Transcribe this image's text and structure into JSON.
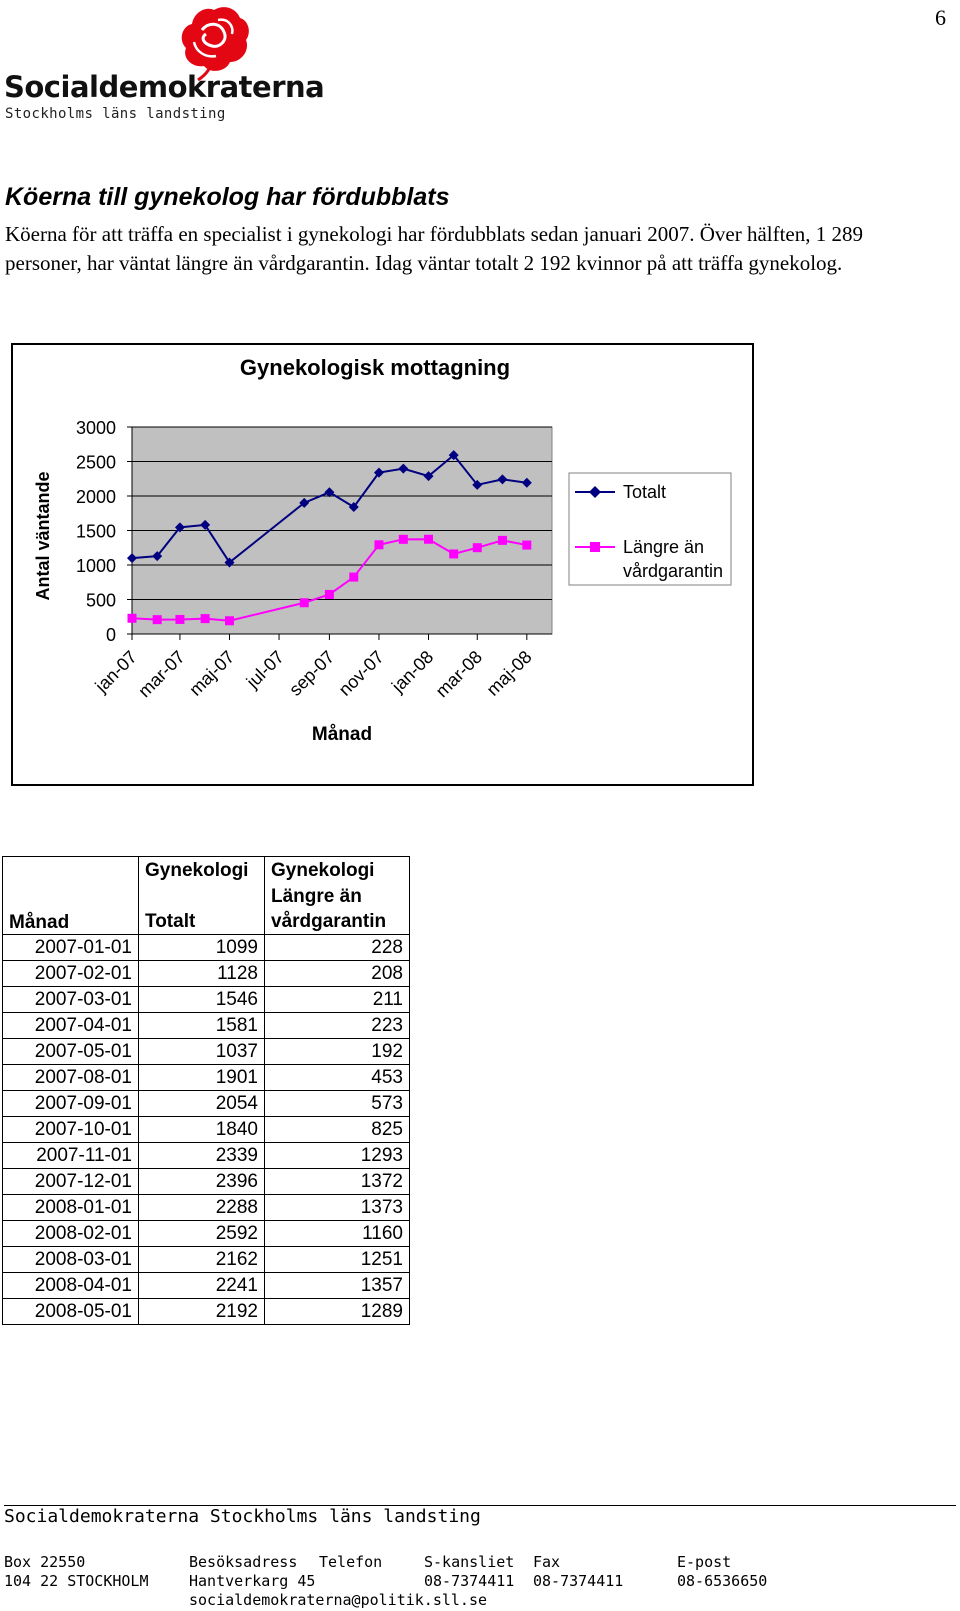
{
  "page_number": "6",
  "logo": {
    "wordmark": "Socialdemokraterna",
    "subtitle": "Stockholms läns landsting",
    "colors": {
      "rose": "#e30613"
    }
  },
  "article": {
    "headline": "Köerna till gynekolog har fördubblats",
    "intro": "Köerna för att träffa en specialist i gynekologi har fördubblats sedan januari 2007. Över hälften, 1 289 personer, har väntat längre än vårdgarantin. Idag väntar totalt 2 192 kvinnor på att träffa gynekolog."
  },
  "chart_data": {
    "type": "line",
    "title": "Gynekologisk mottagning",
    "xlabel": "Månad",
    "ylabel": "Antal väntande",
    "ylim": [
      0,
      3000
    ],
    "yticks": [
      "0",
      "500",
      "1000",
      "1500",
      "2000",
      "2500",
      "3000"
    ],
    "x": [
      "2007-01-01",
      "2007-02-01",
      "2007-03-01",
      "2007-04-01",
      "2007-05-01",
      "2007-08-01",
      "2007-09-01",
      "2007-10-01",
      "2007-11-01",
      "2007-12-01",
      "2008-01-01",
      "2008-02-01",
      "2008-03-01",
      "2008-04-01",
      "2008-05-01"
    ],
    "xlim": [
      "2007-01-01",
      "2008-06-01"
    ],
    "xticks": [
      {
        "date": "2007-01-01",
        "label": "jan-07"
      },
      {
        "date": "2007-03-01",
        "label": "mar-07"
      },
      {
        "date": "2007-05-01",
        "label": "maj-07"
      },
      {
        "date": "2007-07-01",
        "label": "jul-07"
      },
      {
        "date": "2007-09-01",
        "label": "sep-07"
      },
      {
        "date": "2007-11-01",
        "label": "nov-07"
      },
      {
        "date": "2008-01-01",
        "label": "jan-08"
      },
      {
        "date": "2008-03-01",
        "label": "mar-08"
      },
      {
        "date": "2008-05-01",
        "label": "maj-08"
      }
    ],
    "series": [
      {
        "name": "Totalt",
        "color": "#000080",
        "marker": "diamond",
        "values": [
          1099,
          1128,
          1546,
          1581,
          1037,
          1901,
          2054,
          1840,
          2339,
          2396,
          2288,
          2592,
          2162,
          2241,
          2192
        ]
      },
      {
        "name": "Längre än vårdgarantin",
        "color": "#ff00ff",
        "marker": "square",
        "values": [
          228,
          208,
          211,
          223,
          192,
          453,
          573,
          825,
          1293,
          1372,
          1373,
          1160,
          1251,
          1357,
          1289
        ]
      }
    ],
    "plot_background": "#c0c0c0",
    "grid": true,
    "legend_position": "right"
  },
  "table": {
    "headers": {
      "month": "Månad",
      "total_top": "Gynekologi",
      "total_bottom": "Totalt",
      "vg_top": "Gynekologi",
      "vg_mid": "Längre än",
      "vg_bottom": "vårdgarantin"
    },
    "rows": [
      {
        "month": "2007-01-01",
        "total": "1099",
        "vg": "228"
      },
      {
        "month": "2007-02-01",
        "total": "1128",
        "vg": "208"
      },
      {
        "month": "2007-03-01",
        "total": "1546",
        "vg": "211"
      },
      {
        "month": "2007-04-01",
        "total": "1581",
        "vg": "223"
      },
      {
        "month": "2007-05-01",
        "total": "1037",
        "vg": "192"
      },
      {
        "month": "2007-08-01",
        "total": "1901",
        "vg": "453"
      },
      {
        "month": "2007-09-01",
        "total": "2054",
        "vg": "573"
      },
      {
        "month": "2007-10-01",
        "total": "1840",
        "vg": "825"
      },
      {
        "month": "2007-11-01",
        "total": "2339",
        "vg": "1293"
      },
      {
        "month": "2007-12-01",
        "total": "2396",
        "vg": "1372"
      },
      {
        "month": "2008-01-01",
        "total": "2288",
        "vg": "1373"
      },
      {
        "month": "2008-02-01",
        "total": "2592",
        "vg": "1160"
      },
      {
        "month": "2008-03-01",
        "total": "2162",
        "vg": "1251"
      },
      {
        "month": "2008-04-01",
        "total": "2241",
        "vg": "1357"
      },
      {
        "month": "2008-05-01",
        "total": "2192",
        "vg": "1289"
      }
    ]
  },
  "footer": {
    "org": "Socialdemokraterna Stockholms läns landsting",
    "box_label": "Box 22550",
    "box_city": "104 22  STOCKHOLM",
    "visit_label": "Besöksadress",
    "visit_value": "Hantverkarg 45",
    "phone_label": "Telefon",
    "office_label": "S-kansliet",
    "office_phone": "08-7374411",
    "fax_label": "Fax",
    "fax_value": "08-7374411",
    "email_label": "E-post",
    "email_phone": "08-6536650",
    "email_value": "socialdemokraterna@politik.sll.se"
  }
}
